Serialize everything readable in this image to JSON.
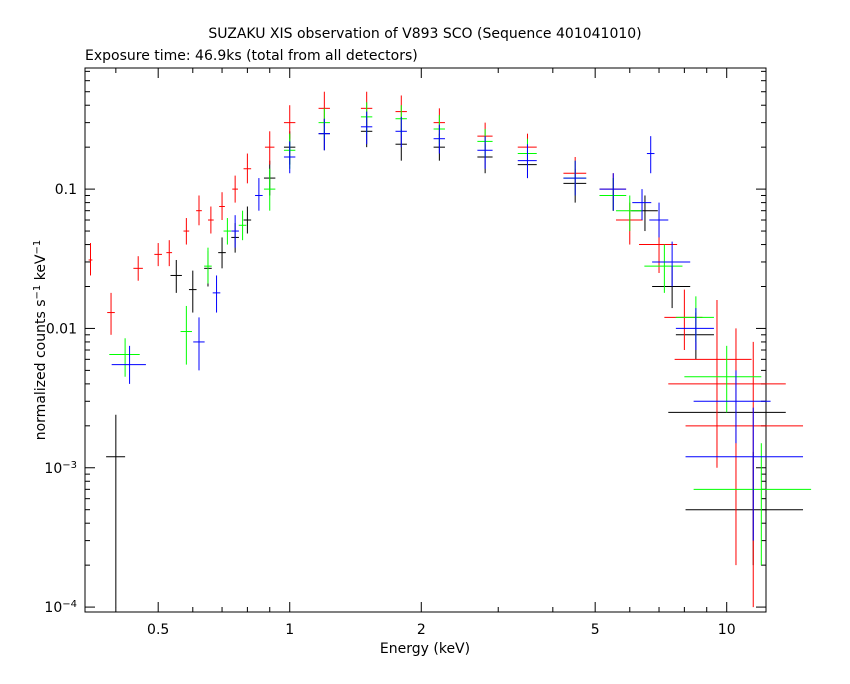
{
  "chart_data": {
    "type": "scatter",
    "title": "SUZAKU XIS observation of V893 SCO (Sequence 401041010)",
    "subtitle": "Exposure time: 46.9ks (total from all detectors)",
    "xlabel": "Energy (keV)",
    "ylabel_parts": {
      "main": "normalized counts s",
      "exp1": "−1",
      "mid": " keV",
      "exp2": "−1"
    },
    "x_scale": "log",
    "y_scale": "log",
    "xlim": [
      0.34,
      12.3
    ],
    "ylim": [
      9.22e-05,
      0.74
    ],
    "grid": false,
    "x_ticks": [
      {
        "value": 0.5,
        "label": "0.5"
      },
      {
        "value": 1,
        "label": "1"
      },
      {
        "value": 2,
        "label": "2"
      },
      {
        "value": 5,
        "label": "5"
      },
      {
        "value": 10,
        "label": "10"
      }
    ],
    "y_ticks": [
      {
        "value": 0.0001,
        "label_base": "10",
        "label_exp": "−4"
      },
      {
        "value": 0.001,
        "label_base": "10",
        "label_exp": "−3"
      },
      {
        "value": 0.01,
        "label": "0.01"
      },
      {
        "value": 0.1,
        "label": "0.1"
      }
    ],
    "colors": {
      "black": "#000000",
      "red": "#ff0000",
      "green": "#00ff00",
      "blue": "#0000ff"
    },
    "series": [
      {
        "color": "#000000",
        "points": [
          [
            0.4,
            0.0012,
            0.05,
            0.0011,
            0.0012
          ],
          [
            0.55,
            0.024,
            0.03,
            0.006,
            0.007
          ],
          [
            0.6,
            0.019,
            0.02,
            0.006,
            0.007
          ],
          [
            0.65,
            0.027,
            0.02,
            0.007,
            0.009
          ],
          [
            0.7,
            0.035,
            0.02,
            0.008,
            0.01
          ],
          [
            0.75,
            0.045,
            0.02,
            0.01,
            0.012
          ],
          [
            0.8,
            0.06,
            0.02,
            0.012,
            0.015
          ],
          [
            0.9,
            0.12,
            0.03,
            0.03,
            0.04
          ],
          [
            1.0,
            0.2,
            0.03,
            0.05,
            0.06
          ],
          [
            1.2,
            0.25,
            0.03,
            0.06,
            0.07
          ],
          [
            1.5,
            0.26,
            0.03,
            0.06,
            0.07
          ],
          [
            1.8,
            0.21,
            0.03,
            0.05,
            0.06
          ],
          [
            2.2,
            0.2,
            0.03,
            0.04,
            0.05
          ],
          [
            2.8,
            0.17,
            0.04,
            0.04,
            0.04
          ],
          [
            3.5,
            0.15,
            0.05,
            0.03,
            0.04
          ],
          [
            4.5,
            0.11,
            0.06,
            0.03,
            0.03
          ],
          [
            5.5,
            0.09,
            0.07,
            0.02,
            0.03
          ],
          [
            6.5,
            0.07,
            0.07,
            0.02,
            0.02
          ],
          [
            7.5,
            0.02,
            0.1,
            0.006,
            0.008
          ],
          [
            8.5,
            0.009,
            0.1,
            0.003,
            0.004
          ],
          [
            10.5,
            0.0025,
            0.3,
            0.001,
            0.002
          ],
          [
            11.5,
            0.0005,
            0.3,
            0.0003,
            0.0008
          ]
        ]
      },
      {
        "color": "#ff0000",
        "points": [
          [
            0.35,
            0.031,
            0.01,
            0.007,
            0.01
          ],
          [
            0.39,
            0.013,
            0.02,
            0.004,
            0.005
          ],
          [
            0.45,
            0.027,
            0.025,
            0.005,
            0.006
          ],
          [
            0.5,
            0.034,
            0.02,
            0.006,
            0.007
          ],
          [
            0.53,
            0.035,
            0.015,
            0.007,
            0.008
          ],
          [
            0.58,
            0.05,
            0.015,
            0.01,
            0.012
          ],
          [
            0.62,
            0.07,
            0.015,
            0.015,
            0.02
          ],
          [
            0.66,
            0.06,
            0.015,
            0.012,
            0.015
          ],
          [
            0.7,
            0.075,
            0.015,
            0.015,
            0.02
          ],
          [
            0.75,
            0.1,
            0.015,
            0.02,
            0.025
          ],
          [
            0.8,
            0.14,
            0.02,
            0.03,
            0.04
          ],
          [
            0.9,
            0.2,
            0.025,
            0.05,
            0.06
          ],
          [
            1.0,
            0.3,
            0.03,
            0.07,
            0.1
          ],
          [
            1.2,
            0.38,
            0.03,
            0.1,
            0.12
          ],
          [
            1.5,
            0.38,
            0.03,
            0.1,
            0.12
          ],
          [
            1.8,
            0.36,
            0.03,
            0.09,
            0.11
          ],
          [
            2.2,
            0.3,
            0.03,
            0.06,
            0.08
          ],
          [
            2.8,
            0.24,
            0.04,
            0.05,
            0.06
          ],
          [
            3.5,
            0.2,
            0.05,
            0.05,
            0.05
          ],
          [
            4.5,
            0.13,
            0.06,
            0.04,
            0.04
          ],
          [
            5.5,
            0.1,
            0.07,
            0.03,
            0.03
          ],
          [
            6.0,
            0.06,
            0.07,
            0.02,
            0.02
          ],
          [
            7.0,
            0.04,
            0.1,
            0.015,
            0.02
          ],
          [
            8.0,
            0.012,
            0.1,
            0.005,
            0.007
          ],
          [
            9.5,
            0.006,
            0.2,
            0.005,
            0.01
          ],
          [
            10.5,
            0.004,
            0.3,
            0.0038,
            0.006
          ],
          [
            11.5,
            0.002,
            0.3,
            0.0019,
            0.006
          ]
        ]
      },
      {
        "color": "#00ff00",
        "points": [
          [
            0.42,
            0.0065,
            0.08,
            0.002,
            0.002
          ],
          [
            0.58,
            0.0095,
            0.03,
            0.004,
            0.005
          ],
          [
            0.65,
            0.028,
            0.02,
            0.007,
            0.01
          ],
          [
            0.72,
            0.05,
            0.02,
            0.01,
            0.012
          ],
          [
            0.78,
            0.055,
            0.02,
            0.012,
            0.015
          ],
          [
            0.9,
            0.1,
            0.03,
            0.03,
            0.04
          ],
          [
            1.0,
            0.19,
            0.03,
            0.05,
            0.06
          ],
          [
            1.2,
            0.3,
            0.03,
            0.07,
            0.08
          ],
          [
            1.5,
            0.33,
            0.03,
            0.08,
            0.09
          ],
          [
            1.8,
            0.32,
            0.03,
            0.07,
            0.08
          ],
          [
            2.2,
            0.27,
            0.03,
            0.06,
            0.07
          ],
          [
            2.8,
            0.22,
            0.04,
            0.05,
            0.05
          ],
          [
            3.5,
            0.18,
            0.05,
            0.04,
            0.05
          ],
          [
            4.5,
            0.12,
            0.06,
            0.03,
            0.04
          ],
          [
            5.5,
            0.09,
            0.07,
            0.02,
            0.03
          ],
          [
            6.0,
            0.07,
            0.07,
            0.02,
            0.02
          ],
          [
            7.2,
            0.028,
            0.1,
            0.01,
            0.012
          ],
          [
            8.5,
            0.012,
            0.1,
            0.004,
            0.005
          ],
          [
            10.0,
            0.0045,
            0.2,
            0.002,
            0.003
          ],
          [
            12.0,
            0.0007,
            0.3,
            0.0005,
            0.0008
          ]
        ]
      },
      {
        "color": "#0000ff",
        "points": [
          [
            0.43,
            0.0055,
            0.09,
            0.0015,
            0.002
          ],
          [
            0.62,
            0.008,
            0.03,
            0.003,
            0.004
          ],
          [
            0.68,
            0.018,
            0.02,
            0.005,
            0.006
          ],
          [
            0.75,
            0.05,
            0.02,
            0.012,
            0.015
          ],
          [
            0.85,
            0.09,
            0.02,
            0.02,
            0.03
          ],
          [
            1.0,
            0.17,
            0.03,
            0.04,
            0.05
          ],
          [
            1.2,
            0.25,
            0.03,
            0.06,
            0.07
          ],
          [
            1.5,
            0.28,
            0.03,
            0.07,
            0.08
          ],
          [
            1.8,
            0.26,
            0.03,
            0.06,
            0.07
          ],
          [
            2.2,
            0.23,
            0.03,
            0.05,
            0.06
          ],
          [
            2.8,
            0.19,
            0.04,
            0.05,
            0.05
          ],
          [
            3.5,
            0.16,
            0.05,
            0.04,
            0.05
          ],
          [
            4.5,
            0.12,
            0.06,
            0.03,
            0.04
          ],
          [
            5.5,
            0.1,
            0.07,
            0.03,
            0.03
          ],
          [
            6.4,
            0.08,
            0.05,
            0.02,
            0.02
          ],
          [
            6.7,
            0.18,
            0.02,
            0.05,
            0.06
          ],
          [
            7.0,
            0.06,
            0.05,
            0.015,
            0.02
          ],
          [
            7.5,
            0.03,
            0.1,
            0.01,
            0.012
          ],
          [
            8.5,
            0.01,
            0.1,
            0.003,
            0.004
          ],
          [
            10.5,
            0.003,
            0.2,
            0.0015,
            0.002
          ],
          [
            11.5,
            0.0012,
            0.3,
            0.0009,
            0.0015
          ]
        ]
      }
    ]
  }
}
